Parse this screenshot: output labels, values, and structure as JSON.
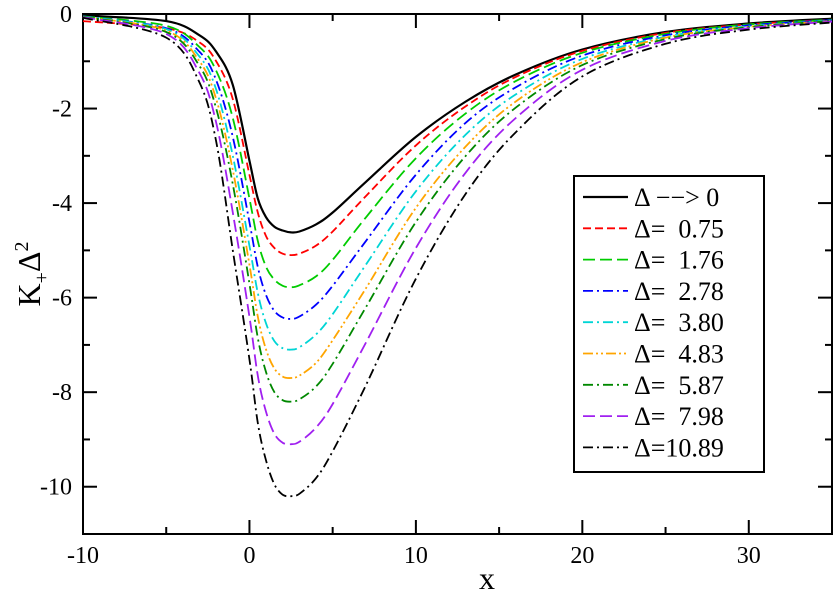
{
  "chart_data": {
    "type": "line",
    "title": "",
    "xlabel": "x",
    "ylabel_main": "K",
    "ylabel_sub": "+",
    "ylabel_tail": "Δ",
    "ylabel_sup": "2",
    "xlim": [
      -10,
      35
    ],
    "ylim": [
      -11,
      0
    ],
    "xticks": [
      -10,
      0,
      10,
      20,
      30
    ],
    "xtick_labels": [
      "-10",
      "0",
      "10",
      "20",
      "30"
    ],
    "yticks": [
      0,
      -2,
      -4,
      -6,
      -8,
      -10
    ],
    "ytick_labels": [
      "0",
      "-2",
      "-4",
      "-6",
      "-8",
      "-10"
    ],
    "grid": false,
    "legend_position": "right",
    "series": [
      {
        "name": "Δ −−> 0",
        "color": "#000000",
        "dash": "solid",
        "minimum": [
          2.5,
          -4.62
        ],
        "x": [
          -10,
          -5,
          -3,
          -2,
          -1,
          0,
          0.5,
          1,
          1.5,
          2,
          2.5,
          3,
          4,
          5,
          7,
          10,
          13,
          16,
          20,
          25,
          30,
          35
        ],
        "y": [
          -0.03,
          -0.15,
          -0.45,
          -0.8,
          -1.5,
          -3.1,
          -3.9,
          -4.3,
          -4.5,
          -4.58,
          -4.62,
          -4.6,
          -4.45,
          -4.2,
          -3.55,
          -2.6,
          -1.85,
          -1.28,
          -0.75,
          -0.38,
          -0.2,
          -0.1
        ]
      },
      {
        "name": "Δ=  0.75",
        "color": "#ff0000",
        "dash": "dash",
        "minimum": [
          2.5,
          -5.1
        ],
        "x": [
          -10,
          -5,
          -3,
          -2,
          -1,
          0,
          0.5,
          1,
          1.5,
          2,
          2.5,
          3,
          4,
          5,
          7,
          10,
          13,
          16,
          20,
          25,
          30,
          35
        ],
        "y": [
          -0.15,
          -0.3,
          -0.6,
          -1.0,
          -1.8,
          -3.4,
          -4.2,
          -4.7,
          -4.95,
          -5.07,
          -5.1,
          -5.07,
          -4.9,
          -4.6,
          -3.85,
          -2.78,
          -1.95,
          -1.33,
          -0.78,
          -0.4,
          -0.22,
          -0.12
        ]
      },
      {
        "name": "Δ=  1.76",
        "color": "#00cc00",
        "dash": "longdash",
        "minimum": [
          2.5,
          -5.78
        ],
        "x": [
          -10,
          -5,
          -3,
          -2,
          -1,
          0,
          0.5,
          1,
          1.5,
          2,
          2.5,
          3,
          4,
          5,
          7,
          10,
          13,
          16,
          20,
          25,
          30,
          35
        ],
        "y": [
          -0.05,
          -0.25,
          -0.7,
          -1.2,
          -2.2,
          -3.9,
          -4.8,
          -5.35,
          -5.62,
          -5.75,
          -5.78,
          -5.74,
          -5.55,
          -5.2,
          -4.3,
          -3.05,
          -2.1,
          -1.42,
          -0.82,
          -0.42,
          -0.22,
          -0.12
        ]
      },
      {
        "name": "Δ=  2.78",
        "color": "#0000ff",
        "dash": "dashdot",
        "minimum": [
          2.5,
          -6.45
        ],
        "x": [
          -10,
          -5,
          -3,
          -2,
          -1,
          0,
          0.5,
          1,
          1.5,
          2,
          2.5,
          3,
          4,
          5,
          7,
          10,
          13,
          16,
          20,
          25,
          30,
          35
        ],
        "y": [
          -0.05,
          -0.3,
          -0.8,
          -1.4,
          -2.6,
          -4.4,
          -5.35,
          -5.95,
          -6.28,
          -6.42,
          -6.45,
          -6.4,
          -6.15,
          -5.75,
          -4.8,
          -3.4,
          -2.3,
          -1.55,
          -0.88,
          -0.45,
          -0.24,
          -0.13
        ]
      },
      {
        "name": "Δ=  3.80",
        "color": "#00d5d5",
        "dash": "dashdot",
        "minimum": [
          2.5,
          -7.1
        ],
        "x": [
          -10,
          -5,
          -3,
          -2,
          -1,
          0,
          0.5,
          1,
          1.5,
          2,
          2.5,
          3,
          4,
          5,
          7,
          10,
          13,
          16,
          20,
          25,
          30,
          35
        ],
        "y": [
          -0.05,
          -0.32,
          -0.9,
          -1.6,
          -3.0,
          -4.9,
          -5.9,
          -6.55,
          -6.92,
          -7.07,
          -7.1,
          -7.05,
          -6.78,
          -6.35,
          -5.3,
          -3.75,
          -2.55,
          -1.7,
          -0.95,
          -0.48,
          -0.26,
          -0.14
        ]
      },
      {
        "name": "Δ=  4.83",
        "color": "#ffa500",
        "dash": "dashdotdot",
        "minimum": [
          2.5,
          -7.7
        ],
        "x": [
          -10,
          -5,
          -3,
          -2,
          -1,
          0,
          0.5,
          1,
          1.5,
          2,
          2.5,
          3,
          4,
          5,
          7,
          10,
          13,
          16,
          20,
          25,
          30,
          35
        ],
        "y": [
          -0.06,
          -0.35,
          -1.0,
          -1.8,
          -3.3,
          -5.3,
          -6.4,
          -7.1,
          -7.5,
          -7.67,
          -7.7,
          -7.65,
          -7.38,
          -6.9,
          -5.8,
          -4.1,
          -2.8,
          -1.85,
          -1.02,
          -0.5,
          -0.27,
          -0.15
        ]
      },
      {
        "name": "Δ=  5.87",
        "color": "#008800",
        "dash": "dashdot",
        "minimum": [
          2.5,
          -8.2
        ],
        "x": [
          -10,
          -5,
          -3,
          -2,
          -1,
          0,
          0.5,
          1,
          1.5,
          2,
          2.5,
          3,
          4,
          5,
          7,
          10,
          13,
          16,
          20,
          25,
          30,
          35
        ],
        "y": [
          -0.06,
          -0.38,
          -1.1,
          -2.0,
          -3.6,
          -5.7,
          -6.85,
          -7.58,
          -8.0,
          -8.17,
          -8.2,
          -8.15,
          -7.88,
          -7.4,
          -6.2,
          -4.4,
          -3.0,
          -1.98,
          -1.08,
          -0.53,
          -0.28,
          -0.15
        ]
      },
      {
        "name": "Δ=  7.98",
        "color": "#a020f0",
        "dash": "longdash",
        "minimum": [
          2.5,
          -9.1
        ],
        "x": [
          -10,
          -5,
          -3,
          -2,
          -1,
          0,
          0.5,
          1,
          1.5,
          2,
          2.5,
          3,
          4,
          5,
          7,
          10,
          13,
          16,
          20,
          25,
          30,
          35
        ],
        "y": [
          -0.07,
          -0.42,
          -1.25,
          -2.3,
          -4.2,
          -6.4,
          -7.65,
          -8.42,
          -8.88,
          -9.07,
          -9.1,
          -9.05,
          -8.75,
          -8.25,
          -6.95,
          -4.95,
          -3.35,
          -2.2,
          -1.18,
          -0.57,
          -0.3,
          -0.16
        ]
      },
      {
        "name": "Δ=10.89",
        "color": "#000000",
        "dash": "dashdot",
        "minimum": [
          2.5,
          -10.2
        ],
        "x": [
          -10,
          -5,
          -3,
          -2,
          -1,
          0,
          0.5,
          1,
          1.5,
          2,
          2.5,
          3,
          4,
          5,
          7,
          10,
          13,
          16,
          20,
          25,
          30,
          35
        ],
        "y": [
          -0.08,
          -0.5,
          -1.45,
          -2.7,
          -5.0,
          -7.3,
          -8.65,
          -9.45,
          -9.95,
          -10.17,
          -10.2,
          -10.15,
          -9.82,
          -9.25,
          -7.85,
          -5.6,
          -3.8,
          -2.5,
          -1.32,
          -0.63,
          -0.33,
          -0.18
        ]
      }
    ]
  }
}
